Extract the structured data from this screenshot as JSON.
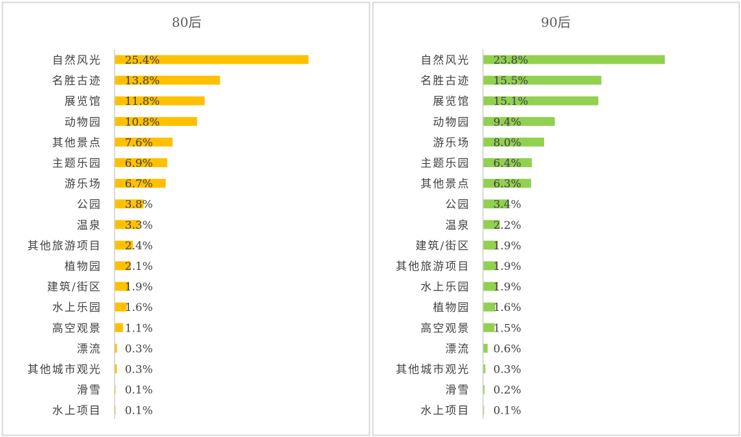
{
  "chart_data": [
    {
      "type": "bar",
      "orientation": "horizontal",
      "title": "80后",
      "color": "#FFC000",
      "categories": [
        "自然风光",
        "名胜古迹",
        "展览馆",
        "动物园",
        "其他景点",
        "主题乐园",
        "游乐场",
        "公园",
        "温泉",
        "其他旅游项目",
        "植物园",
        "建筑/街区",
        "水上乐园",
        "高空观景",
        "漂流",
        "其他城市观光",
        "滑雪",
        "水上项目"
      ],
      "values": [
        25.4,
        13.8,
        11.8,
        10.8,
        7.6,
        6.9,
        6.7,
        3.8,
        3.3,
        2.4,
        2.1,
        1.9,
        1.6,
        1.1,
        0.3,
        0.3,
        0.1,
        0.1
      ],
      "labels": [
        "25.4%",
        "13.8%",
        "11.8%",
        "10.8%",
        "7.6%",
        "6.9%",
        "6.7%",
        "3.8%",
        "3.3%",
        "2.4%",
        "2.1%",
        "1.9%",
        "1.6%",
        "1.1%",
        "0.3%",
        "0.3%",
        "0.1%",
        "0.1%"
      ],
      "xlim": [
        0,
        30
      ],
      "grid": false
    },
    {
      "type": "bar",
      "orientation": "horizontal",
      "title": "90后",
      "color": "#92D050",
      "categories": [
        "自然风光",
        "名胜古迹",
        "展览馆",
        "动物园",
        "游乐场",
        "主题乐园",
        "其他景点",
        "公园",
        "温泉",
        "建筑/街区",
        "其他旅游项目",
        "水上乐园",
        "植物园",
        "高空观景",
        "漂流",
        "其他城市观光",
        "滑雪",
        "水上项目"
      ],
      "values": [
        23.8,
        15.5,
        15.1,
        9.4,
        8.0,
        6.4,
        6.3,
        3.4,
        2.2,
        1.9,
        1.9,
        1.9,
        1.6,
        1.5,
        0.6,
        0.3,
        0.2,
        0.1
      ],
      "labels": [
        "23.8%",
        "15.5%",
        "15.1%",
        "9.4%",
        "8.0%",
        "6.4%",
        "6.3%",
        "3.4%",
        "2.2%",
        "1.9%",
        "1.9%",
        "1.9%",
        "1.6%",
        "1.5%",
        "0.6%",
        "0.3%",
        "0.2%",
        "0.1%"
      ],
      "xlim": [
        0,
        30
      ],
      "grid": false
    }
  ]
}
